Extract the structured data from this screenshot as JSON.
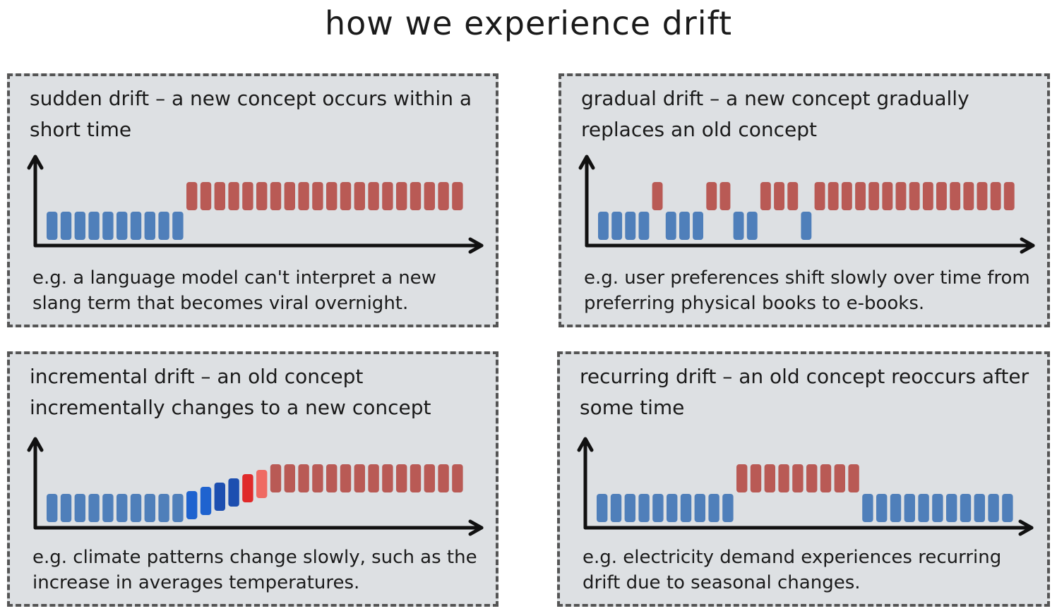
{
  "title": "how we experience drift",
  "colors": {
    "old": "#4f7fba",
    "new": "#b95a55",
    "mid_blue": "#1f63cf",
    "dark_blue": "#1d4fb0",
    "bright_red": "#e02a2a",
    "light_red": "#ef6a63",
    "axis": "#111111",
    "panel_bg": "#dde0e3"
  },
  "panels": [
    {
      "title": "sudden drift – a new concept occurs within a short time",
      "example": "e.g. a language model can't interpret a new slang term that becomes viral overnight.",
      "bars": [
        {
          "level": "low",
          "color": "old",
          "count": 10
        },
        {
          "level": "high",
          "color": "new",
          "count": 20
        }
      ]
    },
    {
      "title": "gradual drift – a new concept gradually replaces an old concept",
      "example": "e.g. user preferences shift slowly over time from preferring physical books to e-books.",
      "bars": [
        {
          "level": "low",
          "color": "old",
          "count": 4
        },
        {
          "level": "high",
          "color": "new",
          "count": 1
        },
        {
          "level": "low",
          "color": "old",
          "count": 3
        },
        {
          "level": "high",
          "color": "new",
          "count": 2
        },
        {
          "level": "low",
          "color": "old",
          "count": 2
        },
        {
          "level": "high",
          "color": "new",
          "count": 3
        },
        {
          "level": "low",
          "color": "old",
          "count": 1
        },
        {
          "level": "high",
          "color": "new",
          "count": 15
        }
      ]
    },
    {
      "title": "incremental drift – an old concept incrementally changes to a new concept",
      "example": "e.g. climate patterns change slowly, such as the increase in averages temperatures.",
      "bars": [
        {
          "level": "low",
          "color": "old",
          "count": 10
        },
        {
          "level": "step1",
          "color": "mid_blue",
          "count": 1
        },
        {
          "level": "step2",
          "color": "mid_blue",
          "count": 1
        },
        {
          "level": "step3",
          "color": "dark_blue",
          "count": 1
        },
        {
          "level": "step4",
          "color": "dark_blue",
          "count": 1
        },
        {
          "level": "step5",
          "color": "bright_red",
          "count": 1
        },
        {
          "level": "step6",
          "color": "light_red",
          "count": 1
        },
        {
          "level": "high",
          "color": "new",
          "count": 14
        }
      ]
    },
    {
      "title": "recurring drift – an old concept reoccurs after some time",
      "example": "e.g. electricity demand experiences recurring drift due to seasonal changes.",
      "bars": [
        {
          "level": "low",
          "color": "old",
          "count": 10
        },
        {
          "level": "high",
          "color": "new",
          "count": 9
        },
        {
          "level": "low",
          "color": "old",
          "count": 11
        }
      ]
    }
  ]
}
